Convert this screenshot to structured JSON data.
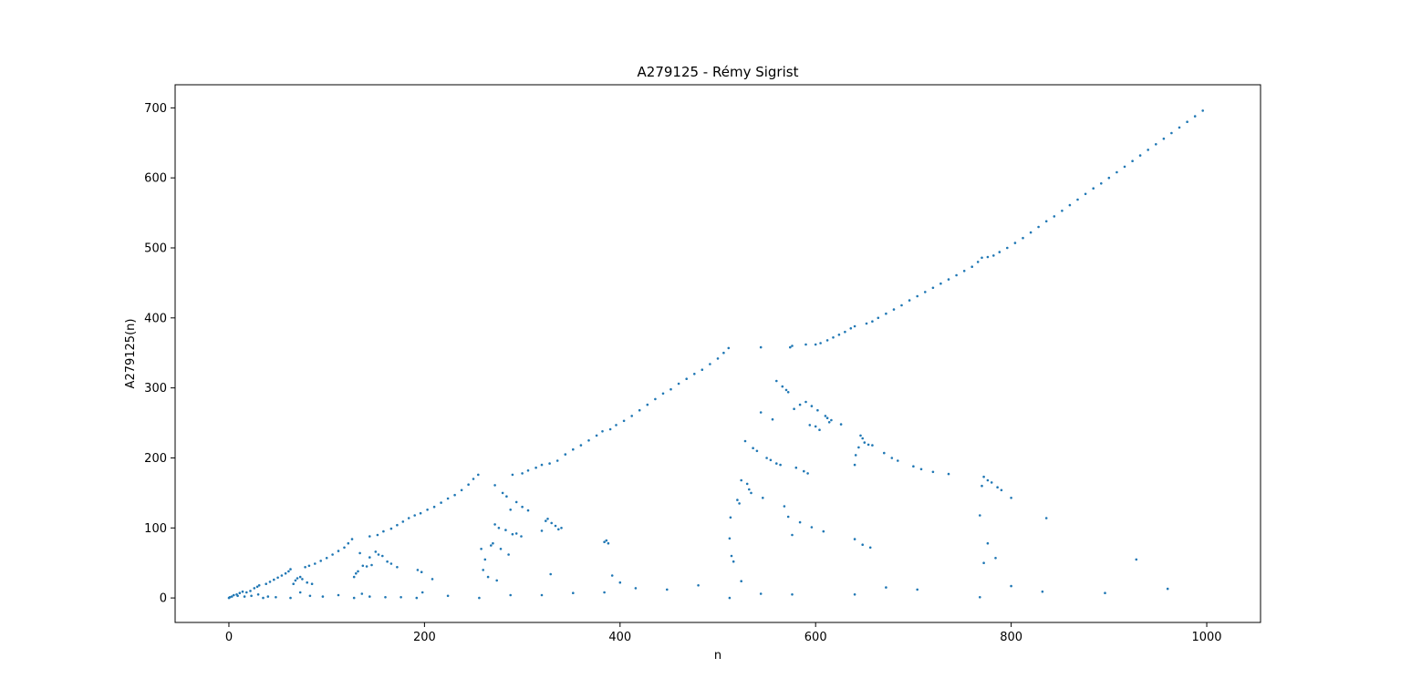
{
  "chart_data": {
    "type": "scatter",
    "title": "A279125 - Rémy Sigrist",
    "xlabel": "n",
    "ylabel": "A279125(n)",
    "xlim": [
      -55,
      1055
    ],
    "ylim": [
      -35,
      733
    ],
    "xticks": [
      0,
      200,
      400,
      600,
      800,
      1000
    ],
    "yticks": [
      0,
      100,
      200,
      300,
      400,
      500,
      600,
      700
    ],
    "grid": false,
    "marker_color": "#1f77b4",
    "series": [
      {
        "name": "",
        "points": [
          [
            0,
            0
          ],
          [
            3,
            2
          ],
          [
            5,
            4
          ],
          [
            8,
            5
          ],
          [
            11,
            7
          ],
          [
            14,
            9
          ],
          [
            18,
            8
          ],
          [
            22,
            10
          ],
          [
            26,
            14
          ],
          [
            29,
            16
          ],
          [
            31,
            18
          ],
          [
            38,
            20
          ],
          [
            42,
            23
          ],
          [
            46,
            26
          ],
          [
            50,
            29
          ],
          [
            54,
            32
          ],
          [
            58,
            35
          ],
          [
            61,
            38
          ],
          [
            63,
            41
          ],
          [
            66,
            20
          ],
          [
            68,
            25
          ],
          [
            70,
            28
          ],
          [
            73,
            30
          ],
          [
            75,
            27
          ],
          [
            80,
            22
          ],
          [
            85,
            20
          ],
          [
            78,
            44
          ],
          [
            82,
            46
          ],
          [
            88,
            49
          ],
          [
            94,
            53
          ],
          [
            100,
            57
          ],
          [
            106,
            62
          ],
          [
            112,
            67
          ],
          [
            118,
            72
          ],
          [
            122,
            78
          ],
          [
            126,
            84
          ],
          [
            128,
            30
          ],
          [
            130,
            35
          ],
          [
            132,
            38
          ],
          [
            134,
            64
          ],
          [
            137,
            46
          ],
          [
            141,
            45
          ],
          [
            144,
            58
          ],
          [
            146,
            47
          ],
          [
            150,
            66
          ],
          [
            153,
            62
          ],
          [
            157,
            60
          ],
          [
            162,
            52
          ],
          [
            166,
            49
          ],
          [
            172,
            44
          ],
          [
            193,
            40
          ],
          [
            197,
            37
          ],
          [
            208,
            27
          ],
          [
            144,
            88
          ],
          [
            152,
            90
          ],
          [
            158,
            95
          ],
          [
            166,
            99
          ],
          [
            172,
            104
          ],
          [
            178,
            109
          ],
          [
            184,
            114
          ],
          [
            190,
            118
          ],
          [
            196,
            121
          ],
          [
            203,
            126
          ],
          [
            210,
            130
          ],
          [
            217,
            136
          ],
          [
            224,
            142
          ],
          [
            231,
            147
          ],
          [
            238,
            154
          ],
          [
            245,
            162
          ],
          [
            250,
            170
          ],
          [
            255,
            176
          ],
          [
            1,
            1
          ],
          [
            9,
            3
          ],
          [
            16,
            2
          ],
          [
            23,
            3
          ],
          [
            30,
            5
          ],
          [
            35,
            0
          ],
          [
            40,
            2
          ],
          [
            48,
            1
          ],
          [
            63,
            0
          ],
          [
            73,
            8
          ],
          [
            83,
            3
          ],
          [
            96,
            2
          ],
          [
            112,
            4
          ],
          [
            128,
            0
          ],
          [
            136,
            6
          ],
          [
            144,
            2
          ],
          [
            160,
            1
          ],
          [
            176,
            1
          ],
          [
            192,
            0
          ],
          [
            198,
            8
          ],
          [
            224,
            3
          ],
          [
            256,
            0
          ],
          [
            260,
            40
          ],
          [
            262,
            55
          ],
          [
            265,
            30
          ],
          [
            268,
            75
          ],
          [
            270,
            78
          ],
          [
            272,
            105
          ],
          [
            274,
            25
          ],
          [
            278,
            70
          ],
          [
            283,
            97
          ],
          [
            286,
            62
          ],
          [
            290,
            91
          ],
          [
            294,
            92
          ],
          [
            299,
            88
          ],
          [
            258,
            70
          ],
          [
            276,
            100
          ],
          [
            272,
            161
          ],
          [
            280,
            150
          ],
          [
            284,
            145
          ],
          [
            288,
            126
          ],
          [
            294,
            137
          ],
          [
            300,
            130
          ],
          [
            306,
            125
          ],
          [
            320,
            96
          ],
          [
            324,
            110
          ],
          [
            326,
            113
          ],
          [
            330,
            107
          ],
          [
            334,
            103
          ],
          [
            337,
            98
          ],
          [
            340,
            100
          ],
          [
            290,
            176
          ],
          [
            300,
            178
          ],
          [
            306,
            182
          ],
          [
            314,
            186
          ],
          [
            320,
            190
          ],
          [
            328,
            192
          ],
          [
            336,
            196
          ],
          [
            344,
            205
          ],
          [
            352,
            212
          ],
          [
            360,
            218
          ],
          [
            368,
            225
          ],
          [
            376,
            232
          ],
          [
            382,
            238
          ],
          [
            384,
            80
          ],
          [
            386,
            82
          ],
          [
            388,
            78
          ],
          [
            390,
            241
          ],
          [
            396,
            247
          ],
          [
            404,
            253
          ],
          [
            412,
            260
          ],
          [
            420,
            268
          ],
          [
            428,
            276
          ],
          [
            436,
            284
          ],
          [
            444,
            292
          ],
          [
            452,
            298
          ],
          [
            460,
            306
          ],
          [
            468,
            313
          ],
          [
            476,
            320
          ],
          [
            484,
            326
          ],
          [
            492,
            334
          ],
          [
            500,
            342
          ],
          [
            506,
            350
          ],
          [
            511,
            357
          ],
          [
            288,
            4
          ],
          [
            320,
            4
          ],
          [
            352,
            7
          ],
          [
            384,
            8
          ],
          [
            392,
            32
          ],
          [
            400,
            22
          ],
          [
            416,
            14
          ],
          [
            448,
            12
          ],
          [
            480,
            18
          ],
          [
            512,
            0
          ],
          [
            329,
            34
          ],
          [
            512,
            85
          ],
          [
            513,
            115
          ],
          [
            514,
            60
          ],
          [
            516,
            52
          ],
          [
            520,
            140
          ],
          [
            522,
            135
          ],
          [
            524,
            168
          ],
          [
            528,
            224
          ],
          [
            530,
            163
          ],
          [
            532,
            155
          ],
          [
            534,
            150
          ],
          [
            536,
            214
          ],
          [
            540,
            210
          ],
          [
            544,
            265
          ],
          [
            546,
            143
          ],
          [
            550,
            200
          ],
          [
            554,
            197
          ],
          [
            556,
            255
          ],
          [
            560,
            192
          ],
          [
            564,
            190
          ],
          [
            568,
            131
          ],
          [
            572,
            116
          ],
          [
            576,
            90
          ],
          [
            580,
            186
          ],
          [
            584,
            108
          ],
          [
            588,
            181
          ],
          [
            592,
            178
          ],
          [
            596,
            101
          ],
          [
            600,
            245
          ],
          [
            604,
            240
          ],
          [
            608,
            95
          ],
          [
            614,
            251
          ],
          [
            524,
            24
          ],
          [
            544,
            6
          ],
          [
            576,
            5
          ],
          [
            544,
            358
          ],
          [
            574,
            358
          ],
          [
            576,
            360
          ],
          [
            590,
            362
          ],
          [
            600,
            362
          ],
          [
            605,
            364
          ],
          [
            612,
            368
          ],
          [
            618,
            372
          ],
          [
            624,
            376
          ],
          [
            630,
            380
          ],
          [
            636,
            385
          ],
          [
            640,
            388
          ],
          [
            652,
            392
          ],
          [
            658,
            395
          ],
          [
            664,
            400
          ],
          [
            672,
            406
          ],
          [
            680,
            412
          ],
          [
            688,
            418
          ],
          [
            696,
            425
          ],
          [
            704,
            431
          ],
          [
            712,
            437
          ],
          [
            720,
            443
          ],
          [
            728,
            449
          ],
          [
            736,
            455
          ],
          [
            744,
            461
          ],
          [
            752,
            467
          ],
          [
            760,
            473
          ],
          [
            766,
            480
          ],
          [
            770,
            486
          ],
          [
            776,
            487
          ],
          [
            782,
            489
          ],
          [
            788,
            494
          ],
          [
            796,
            500
          ],
          [
            804,
            507
          ],
          [
            812,
            514
          ],
          [
            820,
            522
          ],
          [
            828,
            530
          ],
          [
            836,
            538
          ],
          [
            844,
            545
          ],
          [
            852,
            553
          ],
          [
            860,
            561
          ],
          [
            868,
            569
          ],
          [
            876,
            577
          ],
          [
            884,
            585
          ],
          [
            892,
            592
          ],
          [
            900,
            600
          ],
          [
            908,
            608
          ],
          [
            916,
            616
          ],
          [
            924,
            624
          ],
          [
            932,
            632
          ],
          [
            940,
            640
          ],
          [
            948,
            648
          ],
          [
            956,
            656
          ],
          [
            964,
            664
          ],
          [
            972,
            672
          ],
          [
            980,
            680
          ],
          [
            988,
            688
          ],
          [
            996,
            696
          ],
          [
            560,
            310
          ],
          [
            566,
            302
          ],
          [
            570,
            297
          ],
          [
            572,
            294
          ],
          [
            584,
            276
          ],
          [
            590,
            280
          ],
          [
            596,
            274
          ],
          [
            602,
            268
          ],
          [
            610,
            260
          ],
          [
            616,
            254
          ],
          [
            626,
            248
          ],
          [
            578,
            270
          ],
          [
            594,
            247
          ],
          [
            612,
            257
          ],
          [
            640,
            190
          ],
          [
            641,
            204
          ],
          [
            644,
            215
          ],
          [
            646,
            232
          ],
          [
            648,
            228
          ],
          [
            650,
            222
          ],
          [
            654,
            219
          ],
          [
            658,
            218
          ],
          [
            670,
            207
          ],
          [
            678,
            200
          ],
          [
            684,
            196
          ],
          [
            700,
            188
          ],
          [
            708,
            184
          ],
          [
            720,
            180
          ],
          [
            736,
            177
          ],
          [
            640,
            84
          ],
          [
            648,
            76
          ],
          [
            656,
            72
          ],
          [
            640,
            5
          ],
          [
            672,
            15
          ],
          [
            704,
            12
          ],
          [
            768,
            1
          ],
          [
            800,
            17
          ],
          [
            832,
            9
          ],
          [
            896,
            7
          ],
          [
            960,
            13
          ],
          [
            768,
            118
          ],
          [
            770,
            160
          ],
          [
            772,
            173
          ],
          [
            776,
            168
          ],
          [
            780,
            165
          ],
          [
            786,
            158
          ],
          [
            790,
            154
          ],
          [
            800,
            143
          ],
          [
            836,
            114
          ],
          [
            772,
            50
          ],
          [
            776,
            78
          ],
          [
            784,
            57
          ],
          [
            928,
            55
          ]
        ]
      }
    ]
  }
}
